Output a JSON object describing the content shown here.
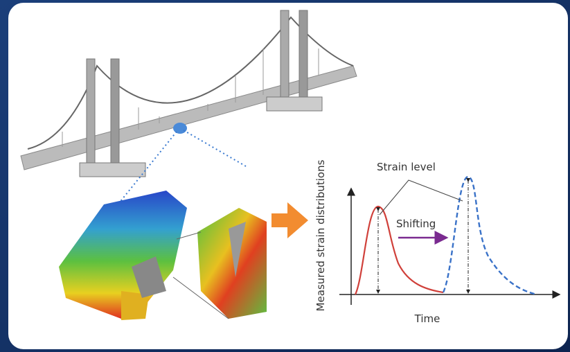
{
  "diagram": {
    "annotations": {
      "strain_level": "Strain level",
      "shifting": "Shifting"
    },
    "axes": {
      "y_label": "Measured strain distributions",
      "x_label": "Time"
    }
  }
}
